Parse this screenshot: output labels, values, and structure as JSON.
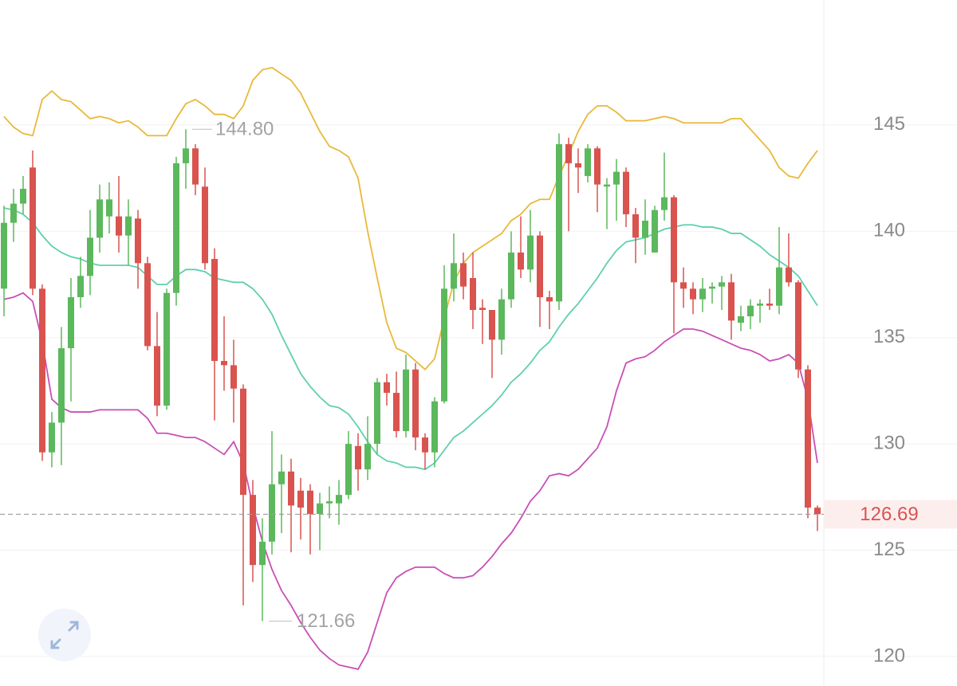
{
  "chart_data": {
    "type": "candlestick",
    "open": [
      137.3,
      140.4,
      141.3,
      143.0,
      137.3,
      129.6,
      131.0,
      134.5,
      136.9,
      137.9,
      139.7,
      140.7,
      140.7,
      139.8,
      140.6,
      138.5,
      134.6,
      131.8,
      137.1,
      143.2,
      143.9,
      142.1,
      138.7,
      133.9,
      133.7,
      132.6,
      127.6,
      124.3,
      125.4,
      128.1,
      128.7,
      127.8,
      127.8,
      126.7,
      127.2,
      127.2,
      127.6,
      129.9,
      128.8,
      130.0,
      132.9,
      132.4,
      130.6,
      133.5,
      130.3,
      129.6,
      132.0,
      137.3,
      138.5,
      137.8,
      136.4,
      136.3,
      134.9,
      136.8,
      139.0,
      138.2,
      139.8,
      136.9,
      136.7,
      144.1,
      143.2,
      142.6,
      143.9,
      142.1,
      142.2,
      142.8,
      140.8,
      139.7,
      139.0,
      141.0,
      141.6,
      137.6,
      137.3,
      136.8,
      137.3,
      137.4,
      137.6,
      135.7,
      136.0,
      136.5,
      136.6,
      136.5,
      138.3,
      137.6,
      133.5,
      127.0
    ],
    "high": [
      141.2,
      142.0,
      142.6,
      143.8,
      137.5,
      131.5,
      135.5,
      137.8,
      138.8,
      141.0,
      142.2,
      142.3,
      142.6,
      141.5,
      141.0,
      138.8,
      136.2,
      137.3,
      143.5,
      144.8,
      144.1,
      143.0,
      139.2,
      136.0,
      134.9,
      132.8,
      128.3,
      126.5,
      130.6,
      129.5,
      129.3,
      128.4,
      128.1,
      127.7,
      128.0,
      128.3,
      130.6,
      130.5,
      131.3,
      133.1,
      133.3,
      133.4,
      134.2,
      133.8,
      130.5,
      132.2,
      138.4,
      139.9,
      139.0,
      139.0,
      136.8,
      136.3,
      137.3,
      140.0,
      140.7,
      141.0,
      140.0,
      137.2,
      144.6,
      144.4,
      143.9,
      144.1,
      144.0,
      142.5,
      143.4,
      143.0,
      141.1,
      141.5,
      141.2,
      143.7,
      141.7,
      138.3,
      137.6,
      137.8,
      137.6,
      137.9,
      138.0,
      136.5,
      136.8,
      136.8,
      137.3,
      140.2,
      139.9,
      137.7,
      133.7,
      127.1
    ],
    "low": [
      136.0,
      139.5,
      140.8,
      137.0,
      129.2,
      128.9,
      129.0,
      132.0,
      136.4,
      137.0,
      139.0,
      139.9,
      139.0,
      138.4,
      137.3,
      134.4,
      131.3,
      131.6,
      136.5,
      142.0,
      141.7,
      138.2,
      131.1,
      132.5,
      131.0,
      122.4,
      123.5,
      121.66,
      124.8,
      125.8,
      124.9,
      125.5,
      124.8,
      125.0,
      126.5,
      126.2,
      127.4,
      127.8,
      128.3,
      129.5,
      131.8,
      130.3,
      130.3,
      129.7,
      128.8,
      128.9,
      131.9,
      136.7,
      136.8,
      135.4,
      134.7,
      133.1,
      134.2,
      136.4,
      137.8,
      137.6,
      135.5,
      135.4,
      136.3,
      140.0,
      141.8,
      142.3,
      140.9,
      140.1,
      140.5,
      140.2,
      138.5,
      138.9,
      139.0,
      140.5,
      135.2,
      136.4,
      136.1,
      136.2,
      136.6,
      136.3,
      134.9,
      135.3,
      135.4,
      135.7,
      136.3,
      136.1,
      137.4,
      133.1,
      126.5,
      125.9
    ],
    "close": [
      140.4,
      141.3,
      142.0,
      137.3,
      129.6,
      131.0,
      134.5,
      136.9,
      137.9,
      139.7,
      141.5,
      141.5,
      139.8,
      140.7,
      138.5,
      134.6,
      131.8,
      137.1,
      143.2,
      143.9,
      142.2,
      138.5,
      133.9,
      133.7,
      132.6,
      127.6,
      124.3,
      125.4,
      128.1,
      128.7,
      127.1,
      127.0,
      126.7,
      127.2,
      127.3,
      127.6,
      130.0,
      128.8,
      130.0,
      132.9,
      132.4,
      130.6,
      133.5,
      130.3,
      129.6,
      132.0,
      137.3,
      138.5,
      137.4,
      136.3,
      136.3,
      134.9,
      136.8,
      139.0,
      138.2,
      139.8,
      136.9,
      136.7,
      144.1,
      143.2,
      143.0,
      143.9,
      142.2,
      142.2,
      142.8,
      140.8,
      139.7,
      140.5,
      141.0,
      141.6,
      137.6,
      137.3,
      136.8,
      137.3,
      137.4,
      137.6,
      135.8,
      136.0,
      136.5,
      136.6,
      136.5,
      138.3,
      137.6,
      133.5,
      127.0,
      126.69
    ],
    "up_color": "#5cb85c",
    "down_color": "#d9534f",
    "bands": [
      {
        "color": "#e8b93a",
        "values": [
          145.4,
          144.9,
          144.6,
          144.5,
          146.2,
          146.6,
          146.2,
          146.1,
          145.7,
          145.3,
          145.4,
          145.3,
          145.1,
          145.2,
          144.9,
          144.5,
          144.5,
          144.5,
          145.3,
          146.0,
          146.2,
          145.9,
          145.5,
          145.5,
          145.3,
          145.9,
          147.1,
          147.6,
          147.7,
          147.4,
          147.1,
          146.5,
          145.6,
          144.7,
          144.0,
          143.8,
          143.5,
          142.5,
          140.0,
          137.8,
          135.7,
          134.5,
          134.3,
          133.9,
          133.5,
          134.0,
          135.9,
          137.6,
          138.5,
          139.0,
          139.3,
          139.6,
          139.9,
          140.5,
          140.8,
          141.3,
          141.5,
          141.5,
          142.6,
          143.6,
          144.7,
          145.5,
          145.9,
          145.9,
          145.6,
          145.2,
          145.2,
          145.2,
          145.3,
          145.4,
          145.3,
          145.1,
          145.1,
          145.1,
          145.1,
          145.1,
          145.3,
          145.3,
          144.8,
          144.3,
          143.8,
          143.0,
          142.6,
          142.5,
          143.2,
          143.8
        ]
      },
      {
        "color": "#5fcfb0",
        "values": [
          141.1,
          141.0,
          140.8,
          140.4,
          139.8,
          139.3,
          139.0,
          138.8,
          138.7,
          138.5,
          138.4,
          138.4,
          138.4,
          138.4,
          138.3,
          137.9,
          137.5,
          137.5,
          137.9,
          138.2,
          138.2,
          138.1,
          137.8,
          137.7,
          137.6,
          137.6,
          137.3,
          136.8,
          136.1,
          135.1,
          134.2,
          133.3,
          132.7,
          132.2,
          131.8,
          131.7,
          131.4,
          130.8,
          130.1,
          129.5,
          129.2,
          129.1,
          128.9,
          128.9,
          128.8,
          129.1,
          129.7,
          130.3,
          130.6,
          131.0,
          131.4,
          131.8,
          132.3,
          132.9,
          133.3,
          133.8,
          134.4,
          134.8,
          135.5,
          136.1,
          136.6,
          137.2,
          137.8,
          138.5,
          139.1,
          139.5,
          139.6,
          139.7,
          139.9,
          140.1,
          140.2,
          140.3,
          140.3,
          140.2,
          140.2,
          140.1,
          139.9,
          139.9,
          139.6,
          139.3,
          138.9,
          138.6,
          138.3,
          137.9,
          137.2,
          136.5
        ]
      },
      {
        "color": "#c94fb6",
        "values": [
          136.8,
          136.9,
          137.1,
          136.7,
          134.8,
          132.1,
          131.7,
          131.5,
          131.5,
          131.5,
          131.6,
          131.6,
          131.6,
          131.6,
          131.6,
          131.2,
          130.5,
          130.5,
          130.4,
          130.3,
          130.3,
          130.1,
          129.8,
          129.5,
          130.1,
          129.1,
          127.1,
          125.4,
          124.1,
          123.1,
          122.4,
          121.6,
          120.9,
          120.3,
          119.9,
          119.6,
          119.5,
          119.4,
          120.2,
          121.6,
          123.0,
          123.7,
          124.0,
          124.2,
          124.2,
          124.2,
          123.9,
          123.7,
          123.7,
          123.8,
          124.2,
          124.7,
          125.3,
          125.8,
          126.5,
          127.3,
          127.8,
          128.5,
          128.6,
          128.5,
          128.8,
          129.3,
          129.8,
          130.8,
          132.5,
          133.8,
          134.0,
          134.1,
          134.4,
          134.8,
          135.1,
          135.4,
          135.4,
          135.3,
          135.1,
          134.9,
          134.7,
          134.5,
          134.4,
          134.2,
          133.9,
          134.0,
          134.2,
          133.8,
          132.1,
          129.1
        ]
      }
    ],
    "high_label": {
      "value": 144.8,
      "label": "144.80"
    },
    "low_label": 121.66,
    "last_price": 126.69,
    "ylim": [
      118.61,
      150.88
    ],
    "yticks": [
      120,
      125,
      130,
      135,
      140,
      145
    ],
    "grid": true
  }
}
